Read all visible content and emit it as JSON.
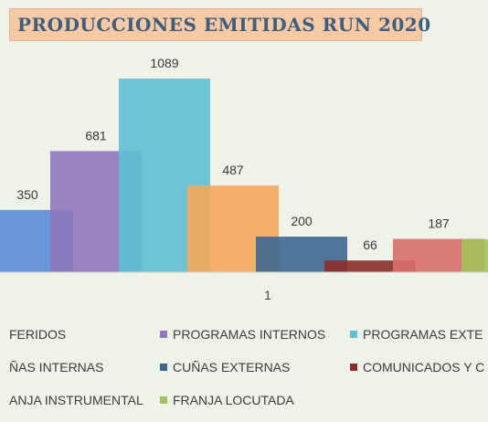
{
  "chart_data": {
    "type": "bar",
    "title": "PRODUCCIONES EMITIDAS RUN 2020",
    "categories": [
      "1"
    ],
    "ylim": [
      0,
      1200
    ],
    "grid": false,
    "legend_position": "bottom",
    "series": [
      {
        "name": "FERIDOS",
        "value": 350,
        "color": "#5b8bd6"
      },
      {
        "name": "PROGRAMAS INTERNOS",
        "value": 681,
        "color": "#8f78bb"
      },
      {
        "name": "PROGRAMAS EXTE",
        "value": 1089,
        "color": "#5fbfd3"
      },
      {
        "name": "ÑAS INTERNAS",
        "value": 487,
        "color": "#f4a85c"
      },
      {
        "name": "CUÑAS EXTERNAS",
        "value": 200,
        "color": "#3d6891"
      },
      {
        "name": "COMUNICADOS Y C",
        "value": 66,
        "color": "#8b2f2a"
      },
      {
        "name": "ANJA INSTRUMENTAL",
        "value": 187,
        "color": "#d96f6b"
      },
      {
        "name": "FRANJA LOCUTADA",
        "value": null,
        "color": "#a2c15a"
      }
    ]
  }
}
